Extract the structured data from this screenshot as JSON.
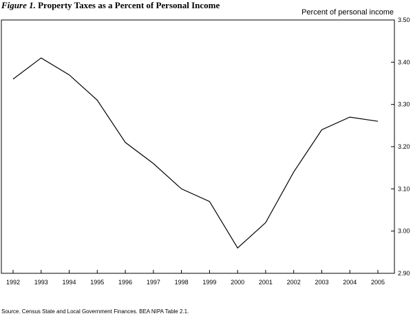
{
  "header": {
    "figure_label": "Figure 1.",
    "title": "Property Taxes as a Percent of Personal Income",
    "unit_label": "Percent of personal income"
  },
  "footer": {
    "source": "Source.  Census State and Local Government Finances.  BEA NIPA Table 2.1."
  },
  "chart_data": {
    "type": "line",
    "title": "Property Taxes as a Percent of Personal Income",
    "xlabel": "",
    "ylabel": "Percent of personal income",
    "categories": [
      "1992",
      "1993",
      "1994",
      "1995",
      "1996",
      "1997",
      "1998",
      "1999",
      "2000",
      "2001",
      "2002",
      "2003",
      "2004",
      "2005"
    ],
    "series": [
      {
        "values": [
          3.36,
          3.41,
          3.37,
          3.31,
          3.21,
          3.16,
          3.1,
          3.07,
          2.96,
          3.02,
          3.14,
          3.24,
          3.27,
          3.26
        ]
      }
    ],
    "ylim": [
      2.9,
      3.5
    ],
    "yticks": [
      "2.90",
      "3.00",
      "3.10",
      "3.20",
      "3.30",
      "3.40",
      "3.50"
    ],
    "grid": false,
    "legend": "none",
    "line_color": "#000000"
  }
}
